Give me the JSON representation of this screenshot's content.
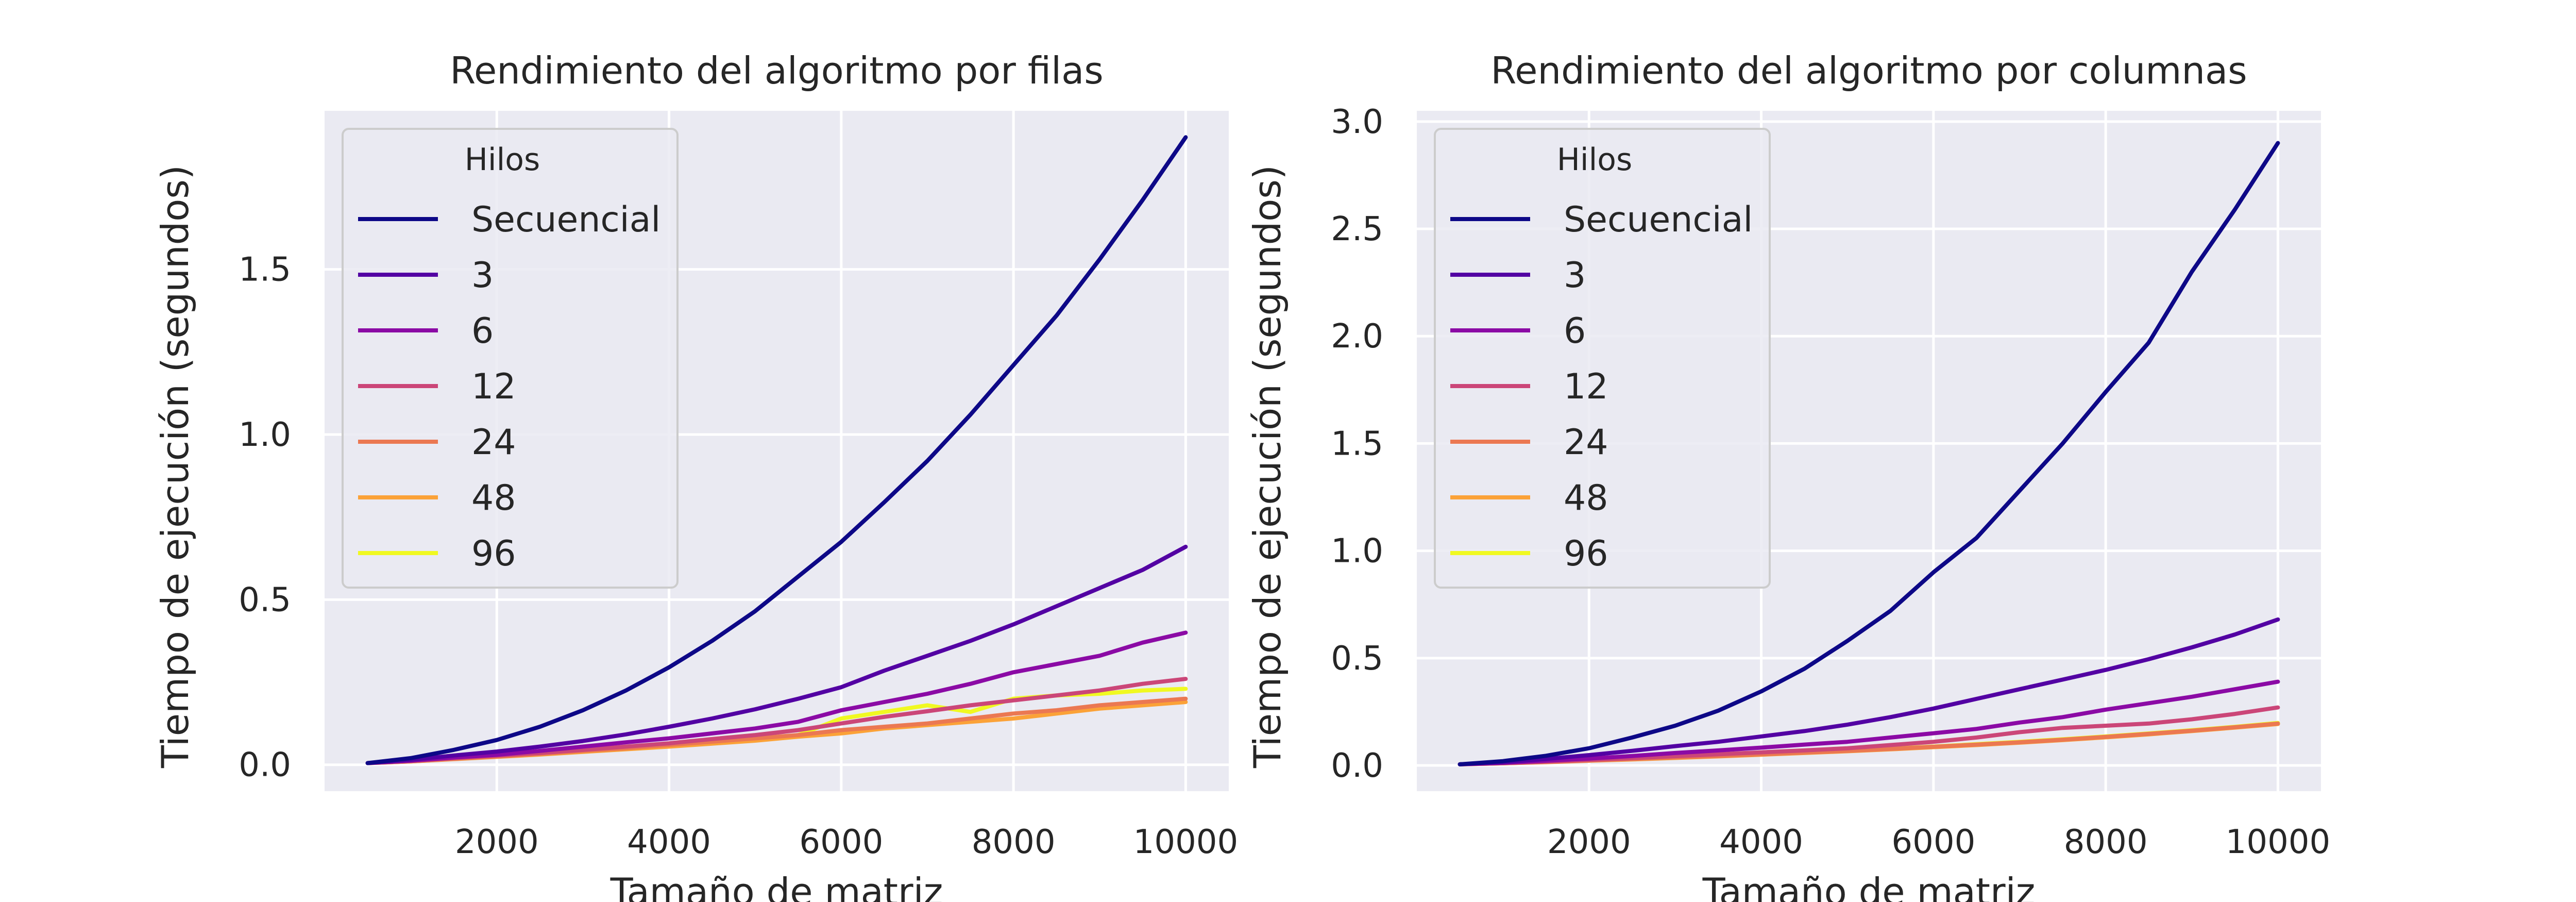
{
  "chart_data": [
    {
      "type": "line",
      "title": "Rendimiento del algoritmo por filas",
      "xlabel": "Tamaño de matriz",
      "ylabel": "Tiempo de ejecución (segundos)",
      "xlim": [
        0,
        10500
      ],
      "ylim": [
        -0.08,
        1.98
      ],
      "xticks": [
        2000,
        4000,
        6000,
        8000,
        10000
      ],
      "yticks": [
        0.0,
        0.5,
        1.0,
        1.5
      ],
      "yticklabels": [
        "0.0",
        "0.5",
        "1.0",
        "1.5"
      ],
      "grid": true,
      "legend_title": "Hilos",
      "legend_position": "upper-left",
      "x": [
        500,
        1000,
        1500,
        2000,
        2500,
        3000,
        3500,
        4000,
        4500,
        5000,
        5500,
        6000,
        6500,
        7000,
        7500,
        8000,
        8500,
        9000,
        9500,
        10000
      ],
      "series": [
        {
          "name": "Secuencial",
          "color": "#0d0887",
          "values": [
            0.005,
            0.02,
            0.045,
            0.075,
            0.115,
            0.165,
            0.225,
            0.295,
            0.375,
            0.465,
            0.57,
            0.675,
            0.795,
            0.92,
            1.06,
            1.21,
            1.36,
            1.53,
            1.71,
            1.9
          ]
        },
        {
          "name": "3",
          "color": "#5302a3",
          "values": [
            0.005,
            0.015,
            0.028,
            0.04,
            0.055,
            0.072,
            0.092,
            0.115,
            0.14,
            0.168,
            0.2,
            0.235,
            0.285,
            0.33,
            0.375,
            0.425,
            0.48,
            0.535,
            0.59,
            0.66
          ]
        },
        {
          "name": "6",
          "color": "#8b0aa5",
          "values": [
            0.005,
            0.012,
            0.022,
            0.03,
            0.042,
            0.055,
            0.068,
            0.08,
            0.095,
            0.11,
            0.13,
            0.165,
            0.19,
            0.215,
            0.245,
            0.28,
            0.305,
            0.33,
            0.37,
            0.4
          ]
        },
        {
          "name": "12",
          "color": "#cb4678",
          "values": [
            0.005,
            0.012,
            0.02,
            0.028,
            0.036,
            0.045,
            0.055,
            0.065,
            0.078,
            0.09,
            0.105,
            0.125,
            0.145,
            0.162,
            0.18,
            0.195,
            0.21,
            0.225,
            0.245,
            0.26
          ]
        },
        {
          "name": "24",
          "color": "#eb7852",
          "values": [
            0.005,
            0.01,
            0.018,
            0.025,
            0.033,
            0.042,
            0.05,
            0.06,
            0.07,
            0.08,
            0.09,
            0.105,
            0.115,
            0.125,
            0.14,
            0.155,
            0.165,
            0.18,
            0.19,
            0.2
          ]
        },
        {
          "name": "48",
          "color": "#fba238",
          "values": [
            0.005,
            0.01,
            0.017,
            0.024,
            0.031,
            0.039,
            0.047,
            0.055,
            0.064,
            0.073,
            0.085,
            0.095,
            0.11,
            0.12,
            0.13,
            0.14,
            0.155,
            0.17,
            0.18,
            0.19
          ]
        },
        {
          "name": "96",
          "color": "#f0f921",
          "values": [
            0.005,
            0.01,
            0.018,
            0.025,
            0.032,
            0.04,
            0.048,
            0.056,
            0.065,
            0.075,
            0.09,
            0.14,
            0.16,
            0.18,
            0.16,
            0.2,
            0.21,
            0.215,
            0.225,
            0.23
          ]
        }
      ]
    },
    {
      "type": "line",
      "title": "Rendimiento del algoritmo por columnas",
      "xlabel": "Tamaño de matriz",
      "ylabel": "Tiempo de ejecución (segundos)",
      "xlim": [
        0,
        10500
      ],
      "ylim": [
        -0.12,
        3.05
      ],
      "xticks": [
        2000,
        4000,
        6000,
        8000,
        10000
      ],
      "yticks": [
        0.0,
        0.5,
        1.0,
        1.5,
        2.0,
        2.5,
        3.0
      ],
      "yticklabels": [
        "0.0",
        "0.5",
        "1.0",
        "1.5",
        "2.0",
        "2.5",
        "3.0"
      ],
      "grid": true,
      "legend_title": "Hilos",
      "legend_position": "upper-left",
      "x": [
        500,
        1000,
        1500,
        2000,
        2500,
        3000,
        3500,
        4000,
        4500,
        5000,
        5500,
        6000,
        6500,
        7000,
        7500,
        8000,
        8500,
        9000,
        9500,
        10000
      ],
      "series": [
        {
          "name": "Secuencial",
          "color": "#0d0887",
          "values": [
            0.005,
            0.02,
            0.045,
            0.08,
            0.13,
            0.185,
            0.255,
            0.345,
            0.45,
            0.58,
            0.72,
            0.9,
            1.06,
            1.28,
            1.5,
            1.74,
            1.97,
            2.3,
            2.59,
            2.9
          ]
        },
        {
          "name": "3",
          "color": "#5302a3",
          "values": [
            0.005,
            0.015,
            0.03,
            0.048,
            0.068,
            0.09,
            0.11,
            0.135,
            0.16,
            0.19,
            0.225,
            0.265,
            0.31,
            0.355,
            0.4,
            0.445,
            0.495,
            0.55,
            0.61,
            0.68
          ]
        },
        {
          "name": "6",
          "color": "#8b0aa5",
          "values": [
            0.005,
            0.012,
            0.022,
            0.032,
            0.044,
            0.058,
            0.07,
            0.083,
            0.097,
            0.11,
            0.13,
            0.15,
            0.17,
            0.2,
            0.225,
            0.26,
            0.29,
            0.32,
            0.355,
            0.39
          ]
        },
        {
          "name": "12",
          "color": "#cb4678",
          "values": [
            0.005,
            0.011,
            0.018,
            0.026,
            0.034,
            0.043,
            0.052,
            0.061,
            0.07,
            0.08,
            0.095,
            0.11,
            0.13,
            0.155,
            0.175,
            0.185,
            0.195,
            0.215,
            0.24,
            0.27
          ]
        },
        {
          "name": "24",
          "color": "#eb7852",
          "values": [
            0.005,
            0.01,
            0.016,
            0.023,
            0.03,
            0.037,
            0.044,
            0.052,
            0.06,
            0.068,
            0.077,
            0.087,
            0.097,
            0.108,
            0.12,
            0.133,
            0.147,
            0.162,
            0.178,
            0.195
          ]
        },
        {
          "name": "48",
          "color": "#fba238",
          "values": [
            0.005,
            0.01,
            0.015,
            0.022,
            0.028,
            0.035,
            0.042,
            0.05,
            0.058,
            0.066,
            0.075,
            0.085,
            0.095,
            0.106,
            0.118,
            0.131,
            0.145,
            0.16,
            0.176,
            0.193
          ]
        },
        {
          "name": "96",
          "color": "#f0f921",
          "values": [
            0.005,
            0.01,
            0.016,
            0.023,
            0.029,
            0.036,
            0.044,
            0.052,
            0.06,
            0.069,
            0.078,
            0.088,
            0.099,
            0.11,
            0.122,
            0.135,
            0.149,
            0.164,
            0.18,
            0.198
          ]
        }
      ]
    }
  ]
}
